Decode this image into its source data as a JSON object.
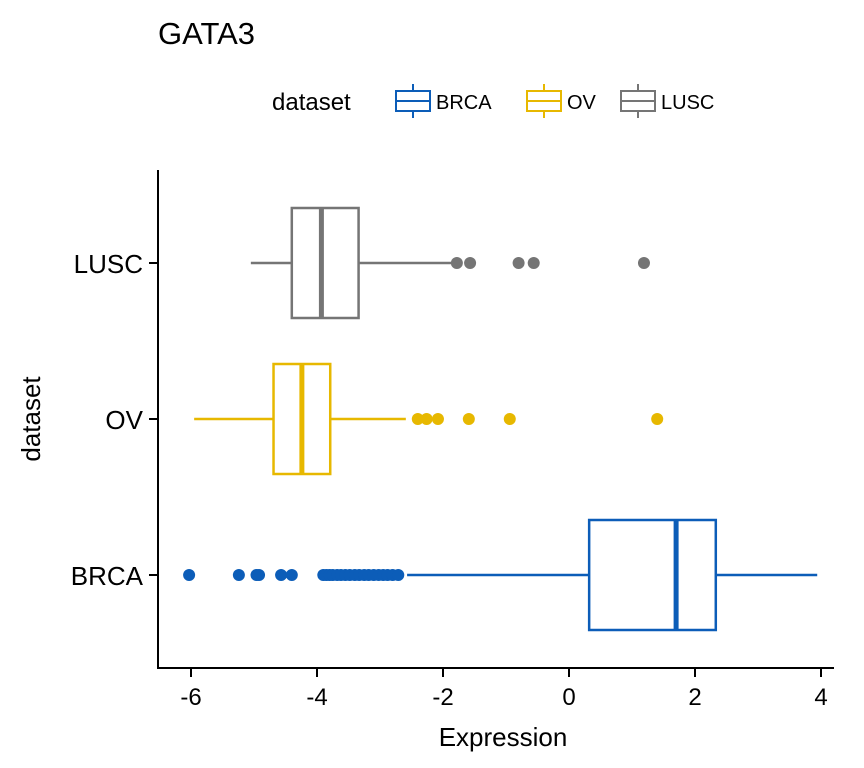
{
  "chart_data": {
    "type": "boxplot",
    "orientation": "horizontal",
    "title": "GATA3",
    "xlabel": "Expression",
    "ylabel": "dataset",
    "xlim": [
      -6.5,
      4.2
    ],
    "xticks": [
      -6,
      -4,
      -2,
      0,
      2,
      4
    ],
    "grid": false,
    "legend": {
      "title": "dataset",
      "placement": "top",
      "entries": [
        "BRCA",
        "OV",
        "LUSC"
      ]
    },
    "categories": [
      "BRCA",
      "OV",
      "LUSC"
    ],
    "series": [
      {
        "name": "BRCA",
        "color": "#0C5DB8",
        "whisker_low": -2.57,
        "q1": 0.32,
        "median": 1.7,
        "q3": 2.33,
        "whisker_high": 3.94,
        "outliers": [
          -6.03,
          -5.24,
          -4.96,
          -4.92,
          -4.57,
          -4.4,
          -3.9,
          -3.85,
          -3.8,
          -3.75,
          -3.68,
          -3.62,
          -3.55,
          -3.48,
          -3.4,
          -3.33,
          -3.25,
          -3.18,
          -3.1,
          -3.02,
          -2.95,
          -2.88,
          -2.8,
          -2.71
        ]
      },
      {
        "name": "OV",
        "color": "#E7B800",
        "whisker_low": -5.95,
        "q1": -4.69,
        "median": -4.24,
        "q3": -3.79,
        "whisker_high": -2.59,
        "outliers": [
          -2.4,
          -2.26,
          -2.08,
          -1.59,
          -0.94,
          1.4
        ]
      },
      {
        "name": "LUSC",
        "color": "#757575",
        "whisker_low": -5.05,
        "q1": -4.4,
        "median": -3.93,
        "q3": -3.34,
        "whisker_high": -1.84,
        "outliers": [
          -1.78,
          -1.57,
          -0.8,
          -0.56,
          1.19
        ]
      }
    ]
  }
}
